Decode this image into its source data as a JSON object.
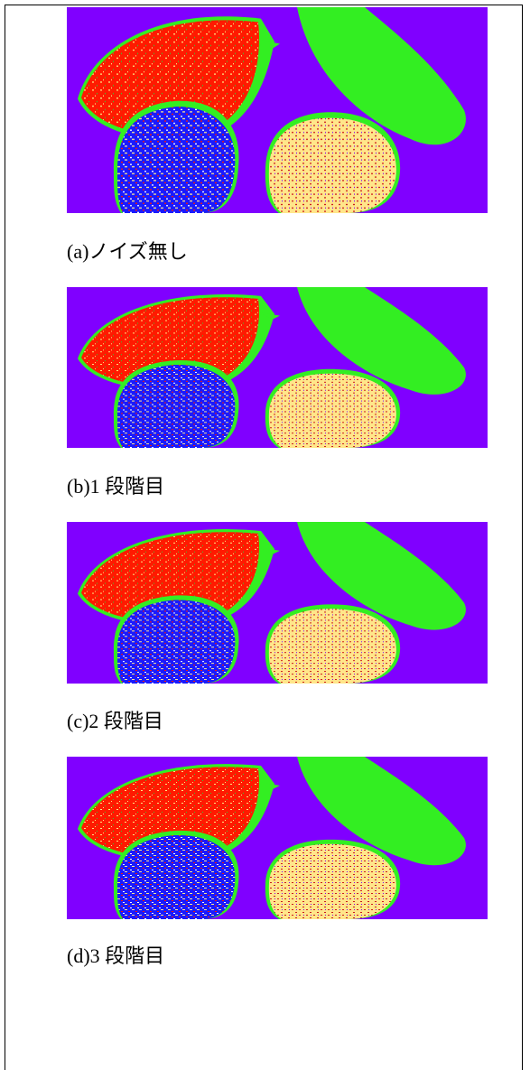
{
  "figures": [
    {
      "caption": "(a)ノイズ無し"
    },
    {
      "caption": "(b)1 段階目"
    },
    {
      "caption": "(c)2 段階目"
    },
    {
      "caption": "(d)3 段階目"
    }
  ]
}
